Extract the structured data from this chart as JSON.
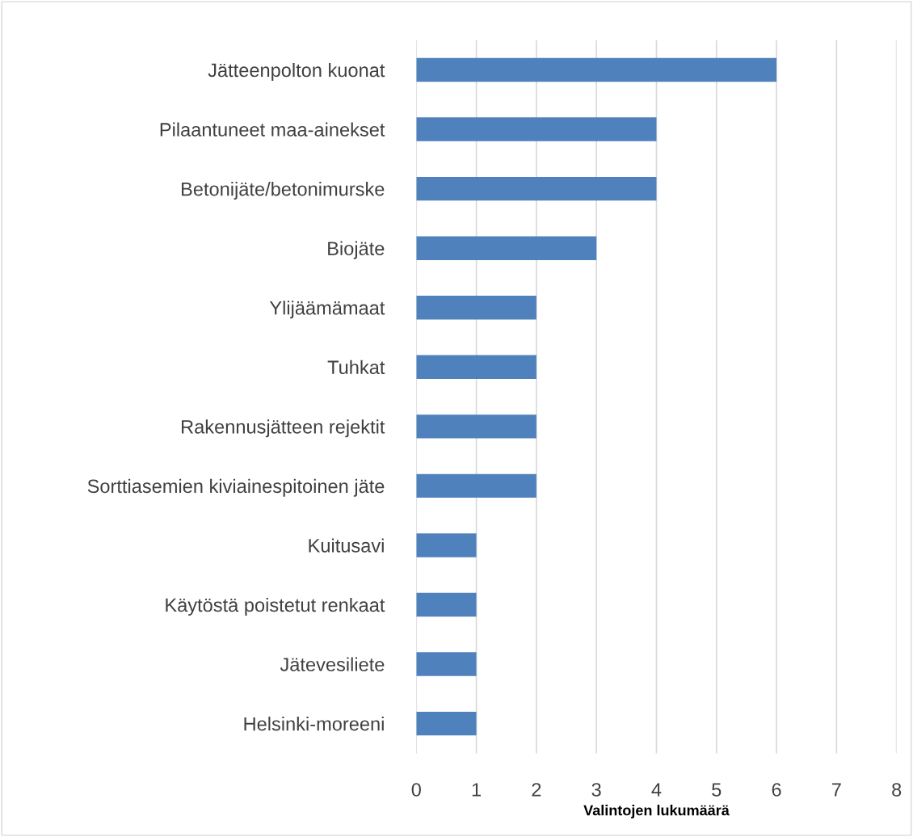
{
  "chart_data": {
    "type": "bar",
    "orientation": "horizontal",
    "xlabel": "Valintojen lukumäärä",
    "categories": [
      "Jätteenpolton kuonat",
      "Pilaantuneet maa-ainekset",
      "Betonijäte/betonimurske",
      "Biojäte",
      "Ylijäämämaat",
      "Tuhkat",
      "Rakennusjätteen rejektit",
      "Sorttiasemien kiviainespitoinen jäte",
      "Kuitusavi",
      "Käytöstä poistetut renkaat",
      "Jätevesiliete",
      "Helsinki-moreeni"
    ],
    "values": [
      6,
      4,
      4,
      3,
      2,
      2,
      2,
      2,
      1,
      1,
      1,
      1
    ],
    "color": "#4f81bd",
    "xlim": [
      0,
      8
    ],
    "xticks": [
      0,
      1,
      2,
      3,
      4,
      5,
      6,
      7,
      8
    ],
    "grid": "x",
    "legend": false
  }
}
